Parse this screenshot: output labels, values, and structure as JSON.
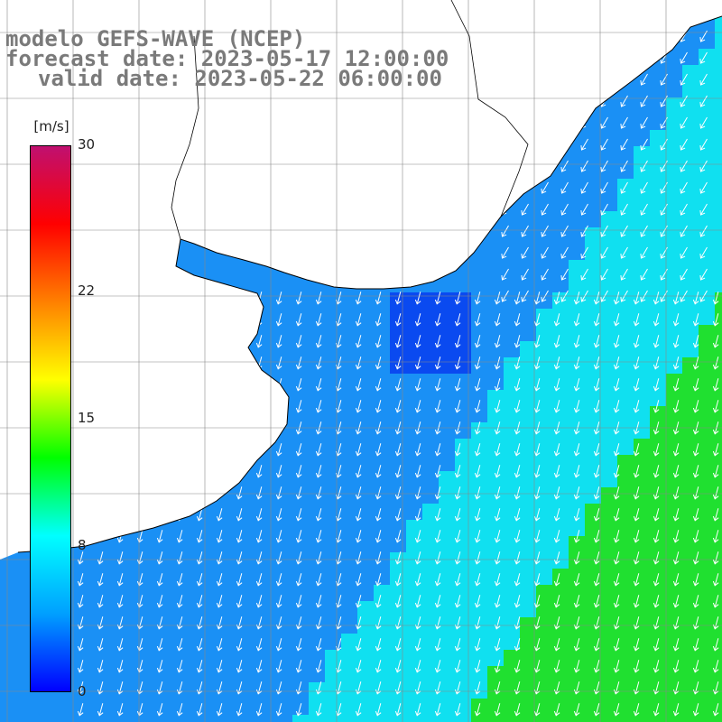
{
  "header": {
    "line1": "modelo GEFS-WAVE (NCEP)",
    "line2": "forecast date: 2023-05-17 12:00:00",
    "line3": "valid date: 2023-05-22 06:00:00"
  },
  "colorbar": {
    "units": "[m/s]",
    "ticks": [
      "30",
      "22",
      "15",
      "8",
      "0"
    ],
    "tick_values": [
      30,
      22,
      15,
      8,
      0
    ],
    "min": 0,
    "max": 30,
    "colors": [
      "#0000ff",
      "#00a0ff",
      "#00ffff",
      "#00ff00",
      "#ffff00",
      "#ff8000",
      "#ff0000",
      "#c01070"
    ]
  },
  "map": {
    "land_color": "#ffffff",
    "grid_on": true,
    "wind_direction": "south-southwest",
    "field_colors": {
      "calm": "#0a4af0",
      "low": "#1a90f5",
      "mid": "#10e0f0",
      "high": "#20e030"
    }
  }
}
